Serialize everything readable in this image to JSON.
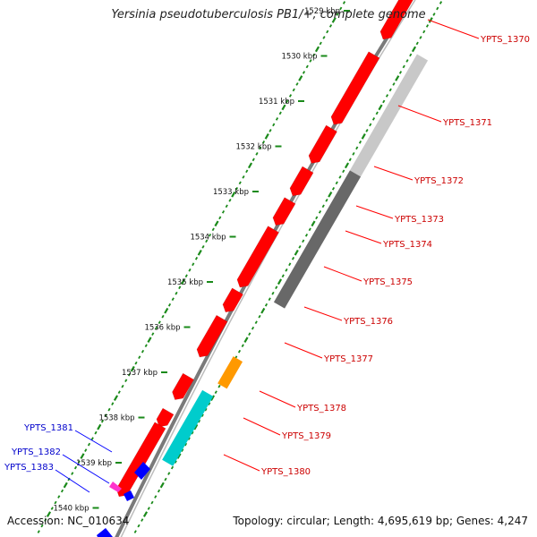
{
  "title": "Yersinia pseudotuberculosis PB1/+, complete genome",
  "accession": "Accession: NC_010634",
  "summary": "Topology: circular; Length: 4,695,619 bp; Genes: 4,247",
  "colors": {
    "forward_gene": "#ff0000",
    "reverse_gene": "#0000ff",
    "label_forward": "#cc0000",
    "label_reverse": "#0000cc",
    "backbone": "#7a7a7a",
    "ticks": "#1a8a1a",
    "feature_light_gray": "#c8c8c8",
    "feature_dark_gray": "#686868",
    "feature_orange": "#ff9900",
    "feature_cyan": "#00cccc",
    "feature_magenta": "#ff33cc"
  },
  "scale_labels": [
    "1529 kbp",
    "1530 kbp",
    "1531 kbp",
    "1532 kbp",
    "1533 kbp",
    "1534 kbp",
    "1535 kbp",
    "1536 kbp",
    "1537 kbp",
    "1538 kbp",
    "1539 kbp",
    "1540 kbp"
  ],
  "forward_genes": [
    {
      "name": "YPTS_1370"
    },
    {
      "name": "YPTS_1371"
    },
    {
      "name": "YPTS_1372"
    },
    {
      "name": "YPTS_1373"
    },
    {
      "name": "YPTS_1374"
    },
    {
      "name": "YPTS_1375"
    },
    {
      "name": "YPTS_1376"
    },
    {
      "name": "YPTS_1377"
    },
    {
      "name": "YPTS_1378"
    },
    {
      "name": "YPTS_1379"
    },
    {
      "name": "YPTS_1380"
    }
  ],
  "reverse_genes": [
    {
      "name": "YPTS_1381"
    },
    {
      "name": "YPTS_1382"
    },
    {
      "name": "YPTS_1383"
    }
  ]
}
